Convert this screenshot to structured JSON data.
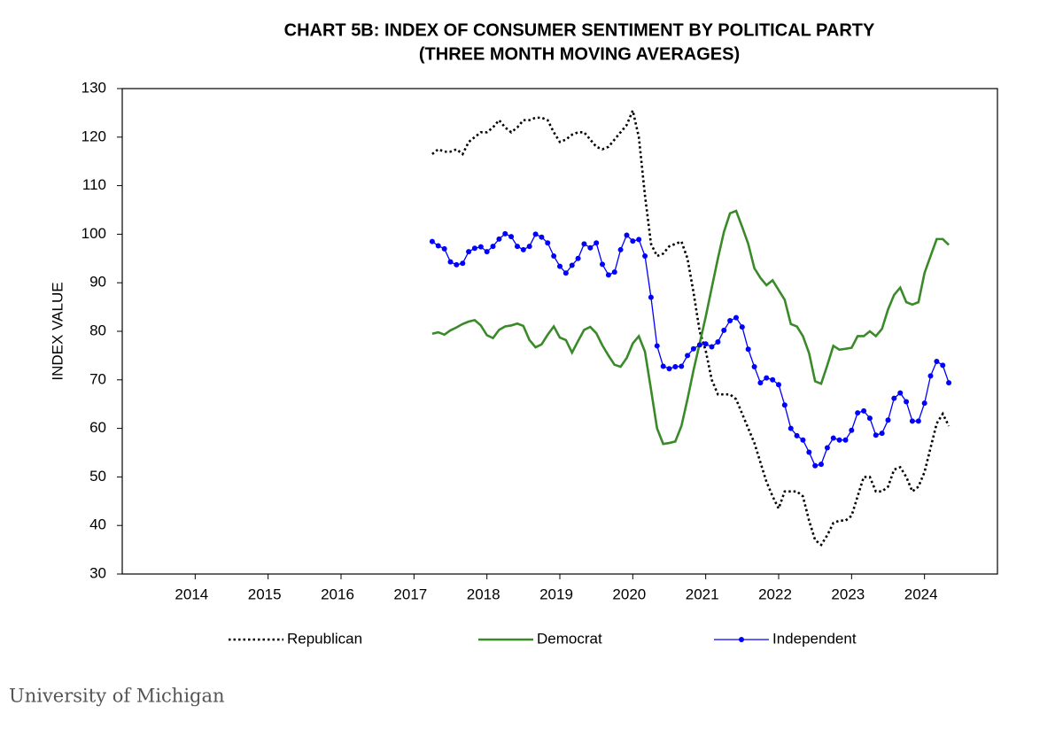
{
  "chart_data": {
    "type": "line",
    "title": "CHART 5B: INDEX OF CONSUMER SENTIMENT BY POLITICAL PARTY",
    "subtitle": "(THREE MONTH MOVING AVERAGES)",
    "y_label": "INDEX VALUE",
    "source": "University of Michigan",
    "xlim": [
      2013,
      2025
    ],
    "xticks": [
      2014,
      2015,
      2016,
      2017,
      2018,
      2019,
      2020,
      2021,
      2022,
      2023,
      2024
    ],
    "ylim": [
      30,
      130
    ],
    "yticks": [
      30,
      40,
      50,
      60,
      70,
      80,
      90,
      100,
      110,
      120,
      130
    ],
    "grid": false,
    "legend": "bottom",
    "x": [
      2017.25,
      2017.333,
      2017.417,
      2017.5,
      2017.583,
      2017.667,
      2017.75,
      2017.833,
      2017.917,
      2018,
      2018.083,
      2018.167,
      2018.25,
      2018.333,
      2018.417,
      2018.5,
      2018.583,
      2018.667,
      2018.75,
      2018.833,
      2018.917,
      2019,
      2019.083,
      2019.167,
      2019.25,
      2019.333,
      2019.417,
      2019.5,
      2019.583,
      2019.667,
      2019.75,
      2019.833,
      2019.917,
      2020,
      2020.083,
      2020.167,
      2020.25,
      2020.333,
      2020.417,
      2020.5,
      2020.583,
      2020.667,
      2020.75,
      2020.833,
      2020.917,
      2021,
      2021.083,
      2021.167,
      2021.25,
      2021.333,
      2021.417,
      2021.5,
      2021.583,
      2021.667,
      2021.75,
      2021.833,
      2021.917,
      2022,
      2022.083,
      2022.167,
      2022.25,
      2022.333,
      2022.417,
      2022.5,
      2022.583,
      2022.667,
      2022.75,
      2022.833,
      2022.917,
      2023,
      2023.083,
      2023.167,
      2023.25,
      2023.333,
      2023.417,
      2023.5,
      2023.583,
      2023.667,
      2023.75,
      2023.833,
      2023.917,
      2024,
      2024.083,
      2024.167,
      2024.25,
      2024.333
    ],
    "series": [
      {
        "name": "Republican",
        "color": "#000000",
        "style": "dotted",
        "markers": false,
        "values": [
          116.5,
          117.5,
          117,
          117,
          117.5,
          116.5,
          119,
          120,
          121,
          121,
          122,
          123.5,
          122,
          121,
          122,
          123.5,
          123.5,
          124,
          124,
          123.5,
          121,
          119,
          119.5,
          120.5,
          121,
          121,
          119.5,
          118,
          117.5,
          118,
          119.5,
          121,
          122.5,
          125.5,
          120,
          108,
          98,
          95.5,
          96,
          97.5,
          98,
          98.5,
          95,
          88,
          80,
          76,
          70,
          67,
          67,
          67,
          66,
          63,
          60,
          57,
          53,
          49,
          46,
          43.5,
          47,
          47,
          47,
          46,
          41,
          37,
          36,
          38,
          40.5,
          41,
          41,
          42,
          46,
          50,
          50,
          47,
          47,
          48,
          51.5,
          52,
          50,
          47,
          48,
          51,
          56,
          61,
          63,
          60.5
        ]
      },
      {
        "name": "Democrat",
        "color": "#3a8a2a",
        "style": "solid",
        "markers": false,
        "values": [
          79.5,
          79.8,
          79.3,
          80.2,
          80.8,
          81.5,
          82,
          82.3,
          81.2,
          79.2,
          78.6,
          80.3,
          81,
          81.2,
          81.6,
          81.1,
          78.2,
          76.7,
          77.3,
          79.3,
          81,
          78.7,
          78.2,
          75.6,
          78,
          80.3,
          80.9,
          79.6,
          77.1,
          75,
          73.1,
          72.7,
          74.5,
          77.5,
          79,
          75.8,
          68,
          60,
          56.8,
          57,
          57.3,
          60.5,
          66,
          72,
          77.5,
          83,
          89,
          95,
          100.5,
          104.3,
          104.8,
          101.5,
          98,
          93,
          91,
          89.5,
          90.5,
          88.5,
          86.5,
          81.5,
          81,
          79,
          75.5,
          69.7,
          69.2,
          73,
          77,
          76.2,
          76.4,
          76.6,
          79,
          79,
          80,
          79,
          80.5,
          84.5,
          87.5,
          89,
          86,
          85.5,
          86,
          92,
          95.5,
          99,
          99,
          97.8
        ]
      },
      {
        "name": "Independent",
        "color": "#0000ff",
        "style": "solid",
        "markers": true,
        "values": [
          98.5,
          97.6,
          97,
          94.3,
          93.7,
          94,
          96.4,
          97.1,
          97.4,
          96.4,
          97.5,
          99,
          100.1,
          99.5,
          97.5,
          96.8,
          97.5,
          100,
          99.4,
          98.2,
          95.5,
          93.4,
          92,
          93.6,
          95,
          98,
          97.2,
          98.2,
          93.8,
          91.6,
          92.2,
          96.8,
          99.8,
          98.6,
          98.9,
          95.5,
          87,
          77,
          72.8,
          72.3,
          72.7,
          72.8,
          75,
          76.4,
          77.2,
          77.4,
          76.8,
          77.8,
          80.2,
          82.2,
          82.8,
          80.9,
          76.3,
          72.7,
          69.4,
          70.4,
          70,
          69,
          64.8,
          60,
          58.5,
          57.6,
          55.1,
          52.3,
          52.6,
          56,
          58,
          57.6,
          57.6,
          59.6,
          63.2,
          63.6,
          62.1,
          58.6,
          59,
          61.7,
          66.2,
          67.3,
          65.5,
          61.5,
          61.5,
          65.2,
          70.8,
          73.8,
          73,
          69.4
        ]
      }
    ]
  }
}
